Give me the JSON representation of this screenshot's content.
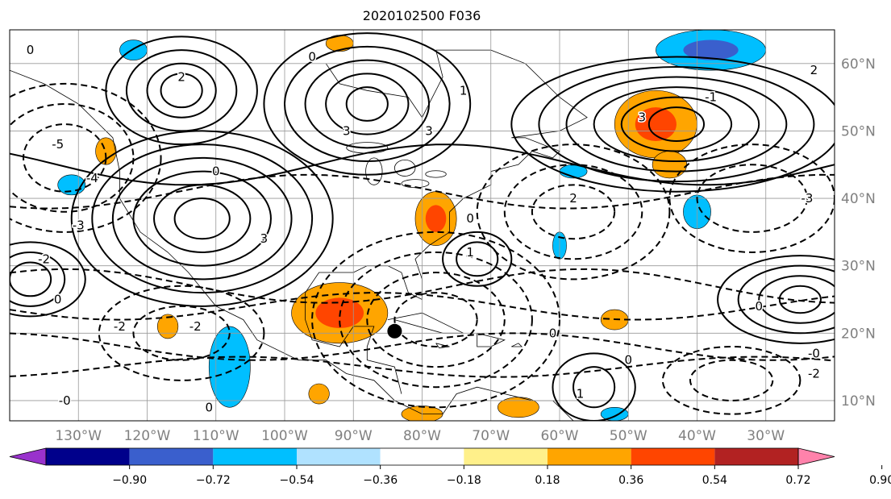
{
  "title": "2020102500 F036",
  "map": {
    "lon_range": [
      -140,
      -20
    ],
    "lat_range": [
      7,
      65
    ],
    "lon_ticks": [
      {
        "lon": -130,
        "label": "130°W"
      },
      {
        "lon": -120,
        "label": "120°W"
      },
      {
        "lon": -110,
        "label": "110°W"
      },
      {
        "lon": -100,
        "label": "100°W"
      },
      {
        "lon": -90,
        "label": "90°W"
      },
      {
        "lon": -80,
        "label": "80°W"
      },
      {
        "lon": -70,
        "label": "70°W"
      },
      {
        "lon": -60,
        "label": "60°W"
      },
      {
        "lon": -50,
        "label": "50°W"
      },
      {
        "lon": -40,
        "label": "40°W"
      },
      {
        "lon": -30,
        "label": "30°W"
      }
    ],
    "lat_ticks": [
      {
        "lat": 60,
        "label": "60°N"
      },
      {
        "lat": 50,
        "label": "50°N"
      },
      {
        "lat": 40,
        "label": "40°N"
      },
      {
        "lat": 30,
        "label": "30°N"
      },
      {
        "lat": 20,
        "label": "20°N"
      },
      {
        "lat": 10,
        "label": "10°N"
      }
    ],
    "grid": true,
    "marker": {
      "name": "storm-center",
      "lon": -84,
      "lat": 20.3,
      "color": "#000000"
    },
    "contours": [
      {
        "type": "solid",
        "name": "high-central-us",
        "lon": -112,
        "lat": 37,
        "rx": [
          4,
          7,
          10,
          13,
          16,
          19
        ],
        "ry": [
          3,
          5,
          7,
          9,
          11,
          13
        ]
      },
      {
        "type": "solid",
        "name": "high-nw-pacific",
        "lon": -115,
        "lat": 56,
        "rx": [
          3,
          5,
          8,
          11
        ],
        "ry": [
          2.5,
          4,
          6,
          8
        ]
      },
      {
        "type": "solid",
        "name": "high-hudson",
        "lon": -88,
        "lat": 54,
        "rx": [
          3,
          6,
          9,
          12,
          15
        ],
        "ry": [
          2.5,
          4.5,
          6.5,
          8.5,
          10.5
        ]
      },
      {
        "type": "solid",
        "name": "high-n-atlantic",
        "lon": -43,
        "lat": 51,
        "rx": [
          4,
          8,
          12,
          16,
          20,
          24
        ],
        "ry": [
          2.5,
          4,
          5.5,
          7,
          8.5,
          10
        ]
      },
      {
        "type": "solid",
        "name": "high-w-atlantic",
        "lon": -72,
        "lat": 31,
        "rx": [
          3,
          5
        ],
        "ry": [
          2.5,
          4
        ]
      },
      {
        "type": "solid",
        "name": "high-e-atlantic",
        "lon": -25,
        "lat": 25,
        "rx": [
          3,
          6,
          9,
          12
        ],
        "ry": [
          2,
          3.5,
          5,
          6.5
        ]
      },
      {
        "type": "solid",
        "name": "high-s-atlantic",
        "lon": -55,
        "lat": 12,
        "rx": [
          3,
          6
        ],
        "ry": [
          3,
          5
        ]
      },
      {
        "type": "solid",
        "name": "high-pacific",
        "lon": -137,
        "lat": 28,
        "rx": [
          3,
          5,
          8
        ],
        "ry": [
          2.5,
          4,
          5.5
        ]
      },
      {
        "type": "dashed",
        "name": "low-pacific",
        "lon": -132,
        "lat": 46,
        "rx": [
          6,
          10,
          14
        ],
        "ry": [
          5,
          8,
          11
        ]
      },
      {
        "type": "dashed",
        "name": "low-gulf",
        "lon": -78,
        "lat": 22,
        "rx": [
          6,
          10,
          14,
          18
        ],
        "ry": [
          4,
          7,
          10,
          13
        ]
      },
      {
        "type": "dashed",
        "name": "low-labrador",
        "lon": -58,
        "lat": 38,
        "rx": [
          6,
          10,
          14
        ],
        "ry": [
          4,
          7,
          10
        ]
      },
      {
        "type": "dashed",
        "name": "low-mexico",
        "lon": -115,
        "lat": 20,
        "rx": [
          7,
          12
        ],
        "ry": [
          4,
          7
        ]
      },
      {
        "type": "dashed",
        "name": "low-e-atlantic",
        "lon": -32,
        "lat": 40,
        "rx": [
          8,
          12
        ],
        "ry": [
          5,
          8
        ]
      },
      {
        "type": "dashed",
        "name": "low-s-atlantic",
        "lon": -35,
        "lat": 13,
        "rx": [
          6,
          10
        ],
        "ry": [
          3,
          5
        ]
      }
    ],
    "contour_labels": [
      {
        "lon": -137,
        "lat": 62,
        "text": "0"
      },
      {
        "lon": -133,
        "lat": 48,
        "text": "-5"
      },
      {
        "lon": -128,
        "lat": 43,
        "text": "-4"
      },
      {
        "lon": -130,
        "lat": 36,
        "text": "-3"
      },
      {
        "lon": -135,
        "lat": 31,
        "text": "-2"
      },
      {
        "lon": -133,
        "lat": 25,
        "text": "0"
      },
      {
        "lon": -124,
        "lat": 21,
        "text": "-2"
      },
      {
        "lon": -113,
        "lat": 21,
        "text": "-2"
      },
      {
        "lon": -132,
        "lat": 10,
        "text": "-0"
      },
      {
        "lon": -111,
        "lat": 9,
        "text": "0"
      },
      {
        "lon": -115,
        "lat": 58,
        "text": "2"
      },
      {
        "lon": -110,
        "lat": 44,
        "text": "0"
      },
      {
        "lon": -103,
        "lat": 34,
        "text": "3"
      },
      {
        "lon": -91,
        "lat": 50,
        "text": "3"
      },
      {
        "lon": -79,
        "lat": 50,
        "text": "3"
      },
      {
        "lon": -96,
        "lat": 61,
        "text": "0"
      },
      {
        "lon": -74,
        "lat": 56,
        "text": "1"
      },
      {
        "lon": -58,
        "lat": 40,
        "text": "2"
      },
      {
        "lon": -73,
        "lat": 32,
        "text": "1"
      },
      {
        "lon": -73,
        "lat": 37,
        "text": "0"
      },
      {
        "lon": -61,
        "lat": 20,
        "text": "0"
      },
      {
        "lon": -50,
        "lat": 16,
        "text": "0"
      },
      {
        "lon": -57,
        "lat": 11,
        "text": "1"
      },
      {
        "lon": -48,
        "lat": 52,
        "text": "3"
      },
      {
        "lon": -23,
        "lat": 59,
        "text": "2"
      },
      {
        "lon": -24,
        "lat": 40,
        "text": "-3"
      },
      {
        "lon": -31,
        "lat": 24,
        "text": "0"
      },
      {
        "lon": -23,
        "lat": 17,
        "text": "-0"
      },
      {
        "lon": -23,
        "lat": 14,
        "text": "-2"
      },
      {
        "lon": -38,
        "lat": 55,
        "text": "-1"
      }
    ],
    "shaded_regions": [
      {
        "name": "gulf-warm",
        "lon": -92,
        "lat": 23,
        "rx": 7,
        "ry": 4.5,
        "levels": [
          "#ffa500",
          "#ff4500"
        ]
      },
      {
        "name": "atlantic-warm",
        "lon": -46,
        "lat": 51,
        "rx": 6,
        "ry": 5,
        "levels": [
          "#ffa500",
          "#ff4500"
        ]
      },
      {
        "name": "atlantic-warm-tail",
        "lon": -44,
        "lat": 45,
        "rx": 2.5,
        "ry": 2,
        "levels": [
          "#ffa500"
        ]
      },
      {
        "name": "carolina-warm",
        "lon": -78,
        "lat": 37,
        "rx": 3,
        "ry": 4,
        "levels": [
          "#ffa500",
          "#ff4500"
        ]
      },
      {
        "name": "greenland-cold",
        "lon": -38,
        "lat": 62,
        "rx": 8,
        "ry": 3,
        "levels": [
          "#00bfff",
          "#3a5fcd"
        ]
      },
      {
        "name": "mexico-cold",
        "lon": -108,
        "lat": 15,
        "rx": 3,
        "ry": 6,
        "levels": [
          "#00bfff"
        ]
      },
      {
        "name": "atlantic-cold",
        "lon": -40,
        "lat": 38,
        "rx": 2,
        "ry": 2.5,
        "levels": [
          "#00bfff"
        ]
      },
      {
        "name": "warm-patch-1",
        "lon": -52,
        "lat": 22,
        "rx": 2,
        "ry": 1.5,
        "levels": [
          "#ffa500"
        ]
      },
      {
        "name": "warm-patch-2",
        "lon": -95,
        "lat": 11,
        "rx": 1.5,
        "ry": 1.5,
        "levels": [
          "#ffa500"
        ]
      },
      {
        "name": "warm-patch-3",
        "lon": -80,
        "lat": 8,
        "rx": 3,
        "ry": 1.2,
        "levels": [
          "#ffa500"
        ]
      },
      {
        "name": "warm-patch-4",
        "lon": -66,
        "lat": 9,
        "rx": 3,
        "ry": 1.5,
        "levels": [
          "#ffa500"
        ]
      },
      {
        "name": "warm-patch-5",
        "lon": -117,
        "lat": 21,
        "rx": 1.5,
        "ry": 1.8,
        "levels": [
          "#ffa500"
        ]
      },
      {
        "name": "warm-patch-6",
        "lon": -92,
        "lat": 63,
        "rx": 2,
        "ry": 1.2,
        "levels": [
          "#ffa500"
        ]
      },
      {
        "name": "cold-patch-1",
        "lon": -131,
        "lat": 42,
        "rx": 2,
        "ry": 1.5,
        "levels": [
          "#00bfff"
        ]
      },
      {
        "name": "cold-patch-2",
        "lon": -122,
        "lat": 62,
        "rx": 2,
        "ry": 1.5,
        "levels": [
          "#00bfff"
        ]
      },
      {
        "name": "cold-patch-3",
        "lon": -58,
        "lat": 44,
        "rx": 2,
        "ry": 1,
        "levels": [
          "#00bfff"
        ]
      },
      {
        "name": "cold-patch-4",
        "lon": -60,
        "lat": 33,
        "rx": 1,
        "ry": 2,
        "levels": [
          "#00bfff"
        ]
      },
      {
        "name": "cold-patch-5",
        "lon": -52,
        "lat": 8,
        "rx": 2,
        "ry": 1,
        "levels": [
          "#00bfff"
        ]
      },
      {
        "name": "warm-patch-7",
        "lon": -126,
        "lat": 47,
        "rx": 1.5,
        "ry": 2,
        "levels": [
          "#ffa500"
        ]
      }
    ]
  },
  "colorbar": {
    "colors": [
      "#9932cc",
      "#00008b",
      "#3a5fcd",
      "#00bfff",
      "#b0e2ff",
      "#ffffff",
      "#fff08a",
      "#ffa500",
      "#ff4500",
      "#b22222",
      "#ff82ab"
    ],
    "ticks": [
      "−0.90",
      "−0.72",
      "−0.54",
      "−0.36",
      "−0.18",
      "0.18",
      "0.36",
      "0.54",
      "0.72",
      "0.90"
    ]
  }
}
